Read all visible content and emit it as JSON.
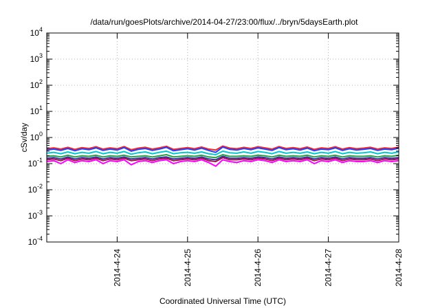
{
  "chart_data": {
    "type": "line",
    "title": "/data/run/goesPlots/archive/2014-04-27/23:00/flux/../bryn/5daysEarth.plot",
    "xlabel": "Coordinated Universal Time (UTC)",
    "ylabel": "cSv/day",
    "yscale": "log",
    "ylim": [
      0.0001,
      10000
    ],
    "y_ticks": [
      {
        "value": 0.0001,
        "base": "10",
        "exp": "-4"
      },
      {
        "value": 0.001,
        "base": "10",
        "exp": "-3"
      },
      {
        "value": 0.01,
        "base": "10",
        "exp": "-2"
      },
      {
        "value": 0.1,
        "base": "10",
        "exp": "-1"
      },
      {
        "value": 1,
        "base": "10",
        "exp": "0"
      },
      {
        "value": 10,
        "base": "10",
        "exp": "1"
      },
      {
        "value": 100,
        "base": "10",
        "exp": "2"
      },
      {
        "value": 1000,
        "base": "10",
        "exp": "3"
      },
      {
        "value": 10000,
        "base": "10",
        "exp": "4"
      }
    ],
    "x_range": [
      "2014-04-23 00:00",
      "2014-04-28 00:00"
    ],
    "x_ticks": [
      "2014-4-24",
      "2014-4-25",
      "2014-4-26",
      "2014-4-27",
      "2014-4-28"
    ],
    "grid": true,
    "legend": "none",
    "series": [
      {
        "color": "#ff2020",
        "values": [
          0.37,
          0.4,
          0.36,
          0.42,
          0.35,
          0.41,
          0.38,
          0.44,
          0.36,
          0.4,
          0.37,
          0.45,
          0.34,
          0.39,
          0.42,
          0.36,
          0.4,
          0.46,
          0.35,
          0.38,
          0.41,
          0.37,
          0.43,
          0.36,
          0.33,
          0.47,
          0.39,
          0.37,
          0.42,
          0.38,
          0.44,
          0.4,
          0.36,
          0.45,
          0.38,
          0.41,
          0.37,
          0.43,
          0.35,
          0.4,
          0.38,
          0.44,
          0.36,
          0.41,
          0.37,
          0.39,
          0.42,
          0.36,
          0.4,
          0.38,
          0.43
        ]
      },
      {
        "color": "#2040ff",
        "values": [
          0.33,
          0.36,
          0.32,
          0.38,
          0.31,
          0.37,
          0.34,
          0.4,
          0.32,
          0.36,
          0.33,
          0.41,
          0.3,
          0.35,
          0.38,
          0.32,
          0.36,
          0.42,
          0.31,
          0.34,
          0.37,
          0.33,
          0.39,
          0.32,
          0.27,
          0.43,
          0.35,
          0.33,
          0.38,
          0.34,
          0.4,
          0.36,
          0.32,
          0.41,
          0.34,
          0.37,
          0.33,
          0.39,
          0.31,
          0.36,
          0.34,
          0.4,
          0.32,
          0.37,
          0.33,
          0.35,
          0.38,
          0.32,
          0.36,
          0.34,
          0.39
        ]
      },
      {
        "color": "#00c8d0",
        "values": [
          0.25,
          0.27,
          0.24,
          0.28,
          0.24,
          0.27,
          0.25,
          0.29,
          0.24,
          0.27,
          0.25,
          0.29,
          0.23,
          0.26,
          0.28,
          0.24,
          0.27,
          0.3,
          0.24,
          0.26,
          0.27,
          0.25,
          0.28,
          0.24,
          0.22,
          0.3,
          0.26,
          0.25,
          0.28,
          0.25,
          0.29,
          0.27,
          0.24,
          0.29,
          0.25,
          0.27,
          0.25,
          0.28,
          0.24,
          0.27,
          0.25,
          0.29,
          0.24,
          0.27,
          0.25,
          0.26,
          0.28,
          0.24,
          0.27,
          0.25,
          0.28
        ]
      },
      {
        "color": "#20a040",
        "values": [
          0.19,
          0.2,
          0.18,
          0.21,
          0.18,
          0.2,
          0.19,
          0.21,
          0.18,
          0.2,
          0.19,
          0.21,
          0.18,
          0.19,
          0.2,
          0.18,
          0.2,
          0.22,
          0.18,
          0.19,
          0.2,
          0.19,
          0.21,
          0.18,
          0.17,
          0.22,
          0.19,
          0.19,
          0.2,
          0.19,
          0.21,
          0.2,
          0.18,
          0.21,
          0.19,
          0.2,
          0.19,
          0.21,
          0.18,
          0.2,
          0.19,
          0.21,
          0.18,
          0.2,
          0.19,
          0.19,
          0.2,
          0.18,
          0.2,
          0.19,
          0.21
        ]
      },
      {
        "color": "#3030a0",
        "values": [
          0.16,
          0.17,
          0.15,
          0.18,
          0.15,
          0.17,
          0.16,
          0.18,
          0.15,
          0.17,
          0.16,
          0.18,
          0.15,
          0.16,
          0.17,
          0.15,
          0.17,
          0.18,
          0.15,
          0.16,
          0.17,
          0.16,
          0.18,
          0.15,
          0.14,
          0.19,
          0.16,
          0.16,
          0.17,
          0.16,
          0.18,
          0.17,
          0.15,
          0.18,
          0.16,
          0.17,
          0.16,
          0.18,
          0.15,
          0.17,
          0.16,
          0.18,
          0.15,
          0.17,
          0.16,
          0.16,
          0.17,
          0.15,
          0.17,
          0.16,
          0.17
        ]
      },
      {
        "color": "#a01040",
        "values": [
          0.14,
          0.15,
          0.13,
          0.16,
          0.13,
          0.15,
          0.14,
          0.16,
          0.13,
          0.15,
          0.14,
          0.16,
          0.13,
          0.14,
          0.15,
          0.13,
          0.15,
          0.16,
          0.13,
          0.14,
          0.15,
          0.14,
          0.16,
          0.13,
          0.12,
          0.17,
          0.14,
          0.14,
          0.15,
          0.14,
          0.16,
          0.15,
          0.13,
          0.16,
          0.14,
          0.15,
          0.14,
          0.16,
          0.13,
          0.15,
          0.14,
          0.16,
          0.13,
          0.15,
          0.14,
          0.14,
          0.15,
          0.13,
          0.15,
          0.14,
          0.15
        ]
      },
      {
        "color": "#ff00ff",
        "values": [
          0.12,
          0.13,
          0.1,
          0.14,
          0.11,
          0.13,
          0.12,
          0.14,
          0.1,
          0.13,
          0.12,
          0.14,
          0.09,
          0.12,
          0.13,
          0.11,
          0.13,
          0.14,
          0.1,
          0.12,
          0.13,
          0.12,
          0.14,
          0.11,
          0.08,
          0.14,
          0.12,
          0.11,
          0.13,
          0.12,
          0.14,
          0.13,
          0.11,
          0.14,
          0.12,
          0.13,
          0.12,
          0.14,
          0.1,
          0.13,
          0.12,
          0.14,
          0.11,
          0.13,
          0.12,
          0.12,
          0.13,
          0.11,
          0.13,
          0.12,
          0.13
        ]
      }
    ]
  }
}
